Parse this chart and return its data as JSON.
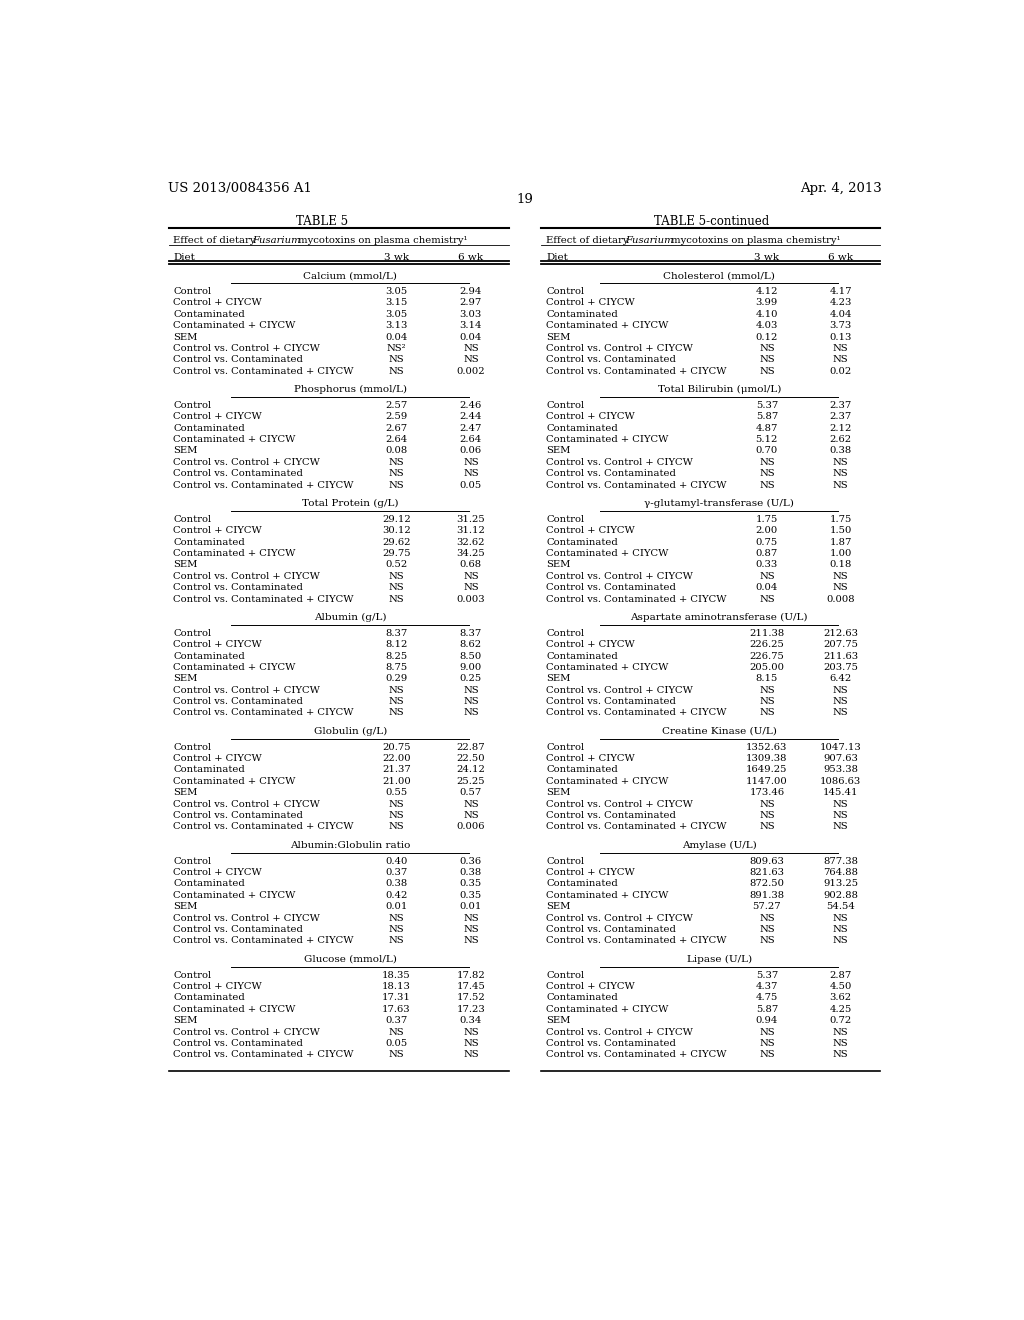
{
  "header_left": "US 2013/0084356 A1",
  "header_right": "Apr. 4, 2013",
  "page_number": "19",
  "table_title_left": "TABLE 5",
  "table_title_right": "TABLE 5-continued",
  "sections_left": [
    {
      "section_header": "Calcium (mmol/L)",
      "rows": [
        [
          "Control",
          "3.05",
          "2.94"
        ],
        [
          "Control + CIYCW",
          "3.15",
          "2.97"
        ],
        [
          "Contaminated",
          "3.05",
          "3.03"
        ],
        [
          "Contaminated + CIYCW",
          "3.13",
          "3.14"
        ],
        [
          "SEM",
          "0.04",
          "0.04"
        ],
        [
          "Control vs. Control + CIYCW",
          "NS²",
          "NS"
        ],
        [
          "Control vs. Contaminated",
          "NS",
          "NS"
        ],
        [
          "Control vs. Contaminated + CIYCW",
          "NS",
          "0.002"
        ]
      ]
    },
    {
      "section_header": "Phosphorus (mmol/L)",
      "rows": [
        [
          "Control",
          "2.57",
          "2.46"
        ],
        [
          "Control + CIYCW",
          "2.59",
          "2.44"
        ],
        [
          "Contaminated",
          "2.67",
          "2.47"
        ],
        [
          "Contaminated + CIYCW",
          "2.64",
          "2.64"
        ],
        [
          "SEM",
          "0.08",
          "0.06"
        ],
        [
          "Control vs. Control + CIYCW",
          "NS",
          "NS"
        ],
        [
          "Control vs. Contaminated",
          "NS",
          "NS"
        ],
        [
          "Control vs. Contaminated + CIYCW",
          "NS",
          "0.05"
        ]
      ]
    },
    {
      "section_header": "Total Protein (g/L)",
      "rows": [
        [
          "Control",
          "29.12",
          "31.25"
        ],
        [
          "Control + CIYCW",
          "30.12",
          "31.12"
        ],
        [
          "Contaminated",
          "29.62",
          "32.62"
        ],
        [
          "Contaminated + CIYCW",
          "29.75",
          "34.25"
        ],
        [
          "SEM",
          "0.52",
          "0.68"
        ],
        [
          "Control vs. Control + CIYCW",
          "NS",
          "NS"
        ],
        [
          "Control vs. Contaminated",
          "NS",
          "NS"
        ],
        [
          "Control vs. Contaminated + CIYCW",
          "NS",
          "0.003"
        ]
      ]
    },
    {
      "section_header": "Albumin (g/L)",
      "rows": [
        [
          "Control",
          "8.37",
          "8.37"
        ],
        [
          "Control + CIYCW",
          "8.12",
          "8.62"
        ],
        [
          "Contaminated",
          "8.25",
          "8.50"
        ],
        [
          "Contaminated + CIYCW",
          "8.75",
          "9.00"
        ],
        [
          "SEM",
          "0.29",
          "0.25"
        ],
        [
          "Control vs. Control + CIYCW",
          "NS",
          "NS"
        ],
        [
          "Control vs. Contaminated",
          "NS",
          "NS"
        ],
        [
          "Control vs. Contaminated + CIYCW",
          "NS",
          "NS"
        ]
      ]
    },
    {
      "section_header": "Globulin (g/L)",
      "rows": [
        [
          "Control",
          "20.75",
          "22.87"
        ],
        [
          "Control + CIYCW",
          "22.00",
          "22.50"
        ],
        [
          "Contaminated",
          "21.37",
          "24.12"
        ],
        [
          "Contaminated + CIYCW",
          "21.00",
          "25.25"
        ],
        [
          "SEM",
          "0.55",
          "0.57"
        ],
        [
          "Control vs. Control + CIYCW",
          "NS",
          "NS"
        ],
        [
          "Control vs. Contaminated",
          "NS",
          "NS"
        ],
        [
          "Control vs. Contaminated + CIYCW",
          "NS",
          "0.006"
        ]
      ]
    },
    {
      "section_header": "Albumin:Globulin ratio",
      "rows": [
        [
          "Control",
          "0.40",
          "0.36"
        ],
        [
          "Control + CIYCW",
          "0.37",
          "0.38"
        ],
        [
          "Contaminated",
          "0.38",
          "0.35"
        ],
        [
          "Contaminated + CIYCW",
          "0.42",
          "0.35"
        ],
        [
          "SEM",
          "0.01",
          "0.01"
        ],
        [
          "Control vs. Control + CIYCW",
          "NS",
          "NS"
        ],
        [
          "Control vs. Contaminated",
          "NS",
          "NS"
        ],
        [
          "Control vs. Contaminated + CIYCW",
          "NS",
          "NS"
        ]
      ]
    },
    {
      "section_header": "Glucose (mmol/L)",
      "rows": [
        [
          "Control",
          "18.35",
          "17.82"
        ],
        [
          "Control + CIYCW",
          "18.13",
          "17.45"
        ],
        [
          "Contaminated",
          "17.31",
          "17.52"
        ],
        [
          "Contaminated + CIYCW",
          "17.63",
          "17.23"
        ],
        [
          "SEM",
          "0.37",
          "0.34"
        ],
        [
          "Control vs. Control + CIYCW",
          "NS",
          "NS"
        ],
        [
          "Control vs. Contaminated",
          "0.05",
          "NS"
        ],
        [
          "Control vs. Contaminated + CIYCW",
          "NS",
          "NS"
        ]
      ]
    }
  ],
  "sections_right": [
    {
      "section_header": "Cholesterol (mmol/L)",
      "rows": [
        [
          "Control",
          "4.12",
          "4.17"
        ],
        [
          "Control + CIYCW",
          "3.99",
          "4.23"
        ],
        [
          "Contaminated",
          "4.10",
          "4.04"
        ],
        [
          "Contaminated + CIYCW",
          "4.03",
          "3.73"
        ],
        [
          "SEM",
          "0.12",
          "0.13"
        ],
        [
          "Control vs. Control + CIYCW",
          "NS",
          "NS"
        ],
        [
          "Control vs. Contaminated",
          "NS",
          "NS"
        ],
        [
          "Control vs. Contaminated + CIYCW",
          "NS",
          "0.02"
        ]
      ]
    },
    {
      "section_header": "Total Bilirubin (μmol/L)",
      "rows": [
        [
          "Control",
          "5.37",
          "2.37"
        ],
        [
          "Control + CIYCW",
          "5.87",
          "2.37"
        ],
        [
          "Contaminated",
          "4.87",
          "2.12"
        ],
        [
          "Contaminated + CIYCW",
          "5.12",
          "2.62"
        ],
        [
          "SEM",
          "0.70",
          "0.38"
        ],
        [
          "Control vs. Control + CIYCW",
          "NS",
          "NS"
        ],
        [
          "Control vs. Contaminated",
          "NS",
          "NS"
        ],
        [
          "Control vs. Contaminated + CIYCW",
          "NS",
          "NS"
        ]
      ]
    },
    {
      "section_header": "γ-glutamyl-transferase (U/L)",
      "rows": [
        [
          "Control",
          "1.75",
          "1.75"
        ],
        [
          "Control + CIYCW",
          "2.00",
          "1.50"
        ],
        [
          "Contaminated",
          "0.75",
          "1.87"
        ],
        [
          "Contaminated + CIYCW",
          "0.87",
          "1.00"
        ],
        [
          "SEM",
          "0.33",
          "0.18"
        ],
        [
          "Control vs. Control + CIYCW",
          "NS",
          "NS"
        ],
        [
          "Control vs. Contaminated",
          "0.04",
          "NS"
        ],
        [
          "Control vs. Contaminated + CIYCW",
          "NS",
          "0.008"
        ]
      ]
    },
    {
      "section_header": "Aspartate aminotransferase (U/L)",
      "rows": [
        [
          "Control",
          "211.38",
          "212.63"
        ],
        [
          "Control + CIYCW",
          "226.25",
          "207.75"
        ],
        [
          "Contaminated",
          "226.75",
          "211.63"
        ],
        [
          "Contaminated + CIYCW",
          "205.00",
          "203.75"
        ],
        [
          "SEM",
          "8.15",
          "6.42"
        ],
        [
          "Control vs. Control + CIYCW",
          "NS",
          "NS"
        ],
        [
          "Control vs. Contaminated",
          "NS",
          "NS"
        ],
        [
          "Control vs. Contaminated + CIYCW",
          "NS",
          "NS"
        ]
      ]
    },
    {
      "section_header": "Creatine Kinase (U/L)",
      "rows": [
        [
          "Control",
          "1352.63",
          "1047.13"
        ],
        [
          "Control + CIYCW",
          "1309.38",
          "907.63"
        ],
        [
          "Contaminated",
          "1649.25",
          "953.38"
        ],
        [
          "Contaminated + CIYCW",
          "1147.00",
          "1086.63"
        ],
        [
          "SEM",
          "173.46",
          "145.41"
        ],
        [
          "Control vs. Control + CIYCW",
          "NS",
          "NS"
        ],
        [
          "Control vs. Contaminated",
          "NS",
          "NS"
        ],
        [
          "Control vs. Contaminated + CIYCW",
          "NS",
          "NS"
        ]
      ]
    },
    {
      "section_header": "Amylase (U/L)",
      "rows": [
        [
          "Control",
          "809.63",
          "877.38"
        ],
        [
          "Control + CIYCW",
          "821.63",
          "764.88"
        ],
        [
          "Contaminated",
          "872.50",
          "913.25"
        ],
        [
          "Contaminated + CIYCW",
          "891.38",
          "902.88"
        ],
        [
          "SEM",
          "57.27",
          "54.54"
        ],
        [
          "Control vs. Control + CIYCW",
          "NS",
          "NS"
        ],
        [
          "Control vs. Contaminated",
          "NS",
          "NS"
        ],
        [
          "Control vs. Contaminated + CIYCW",
          "NS",
          "NS"
        ]
      ]
    },
    {
      "section_header": "Lipase (U/L)",
      "rows": [
        [
          "Control",
          "5.37",
          "2.87"
        ],
        [
          "Control + CIYCW",
          "4.37",
          "4.50"
        ],
        [
          "Contaminated",
          "4.75",
          "3.62"
        ],
        [
          "Contaminated + CIYCW",
          "5.87",
          "4.25"
        ],
        [
          "SEM",
          "0.94",
          "0.72"
        ],
        [
          "Control vs. Control + CIYCW",
          "NS",
          "NS"
        ],
        [
          "Control vs. Contaminated",
          "NS",
          "NS"
        ],
        [
          "Control vs. Contaminated + CIYCW",
          "NS",
          "NS"
        ]
      ]
    }
  ]
}
